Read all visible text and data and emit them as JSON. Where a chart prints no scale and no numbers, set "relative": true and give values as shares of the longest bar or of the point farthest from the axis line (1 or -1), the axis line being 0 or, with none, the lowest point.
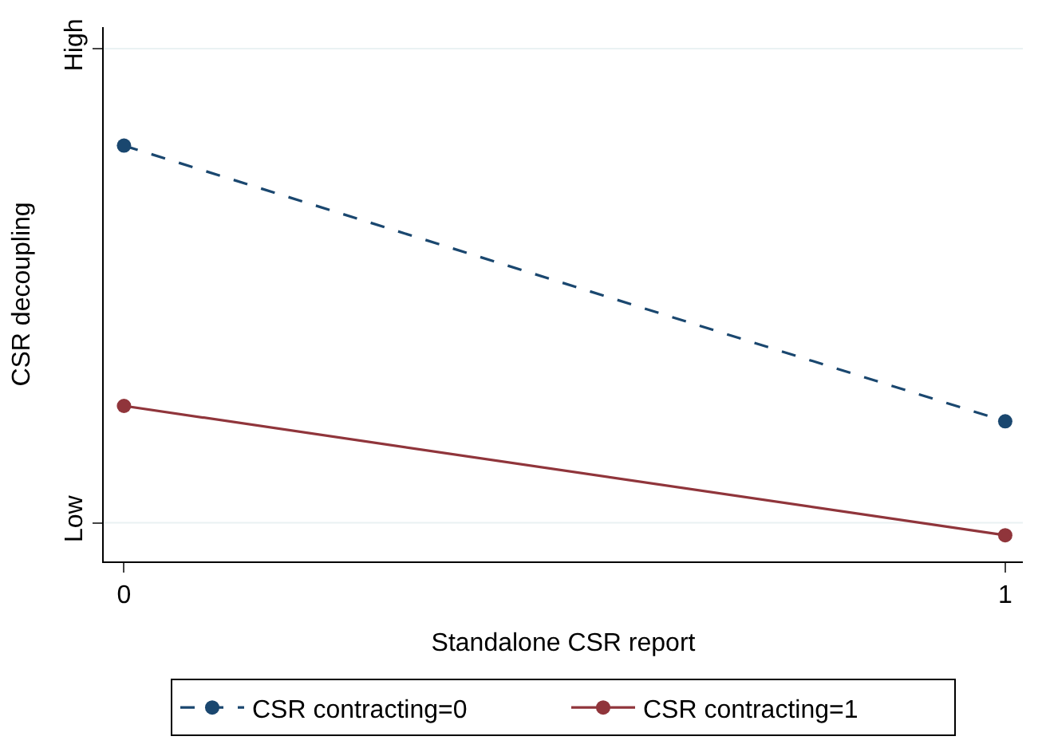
{
  "chart_data": {
    "type": "line",
    "xlabel": "Standalone CSR report",
    "ylabel": "CSR decoupling",
    "x": [
      0,
      1
    ],
    "series": [
      {
        "name": "CSR contracting=0",
        "color": "#1a476f",
        "values": [
          1,
          0.337
        ],
        "line_style": "dashed"
      },
      {
        "name": "CSR contracting=1",
        "color": "#90353b",
        "values": [
          0.374,
          0.063
        ],
        "line_style": "solid"
      }
    ],
    "relative": true,
    "ref_lines": [
      {
        "axis": "y",
        "value": 0.093,
        "label": "Low",
        "color": "#eaf2f3"
      },
      {
        "axis": "y",
        "value": 1.233,
        "label": "High",
        "color": "#eaf2f3"
      }
    ],
    "xlim": [
      -0.023,
      1.02
    ],
    "xticks": [
      0,
      1
    ],
    "legend": "bottom",
    "marker": "circle"
  }
}
